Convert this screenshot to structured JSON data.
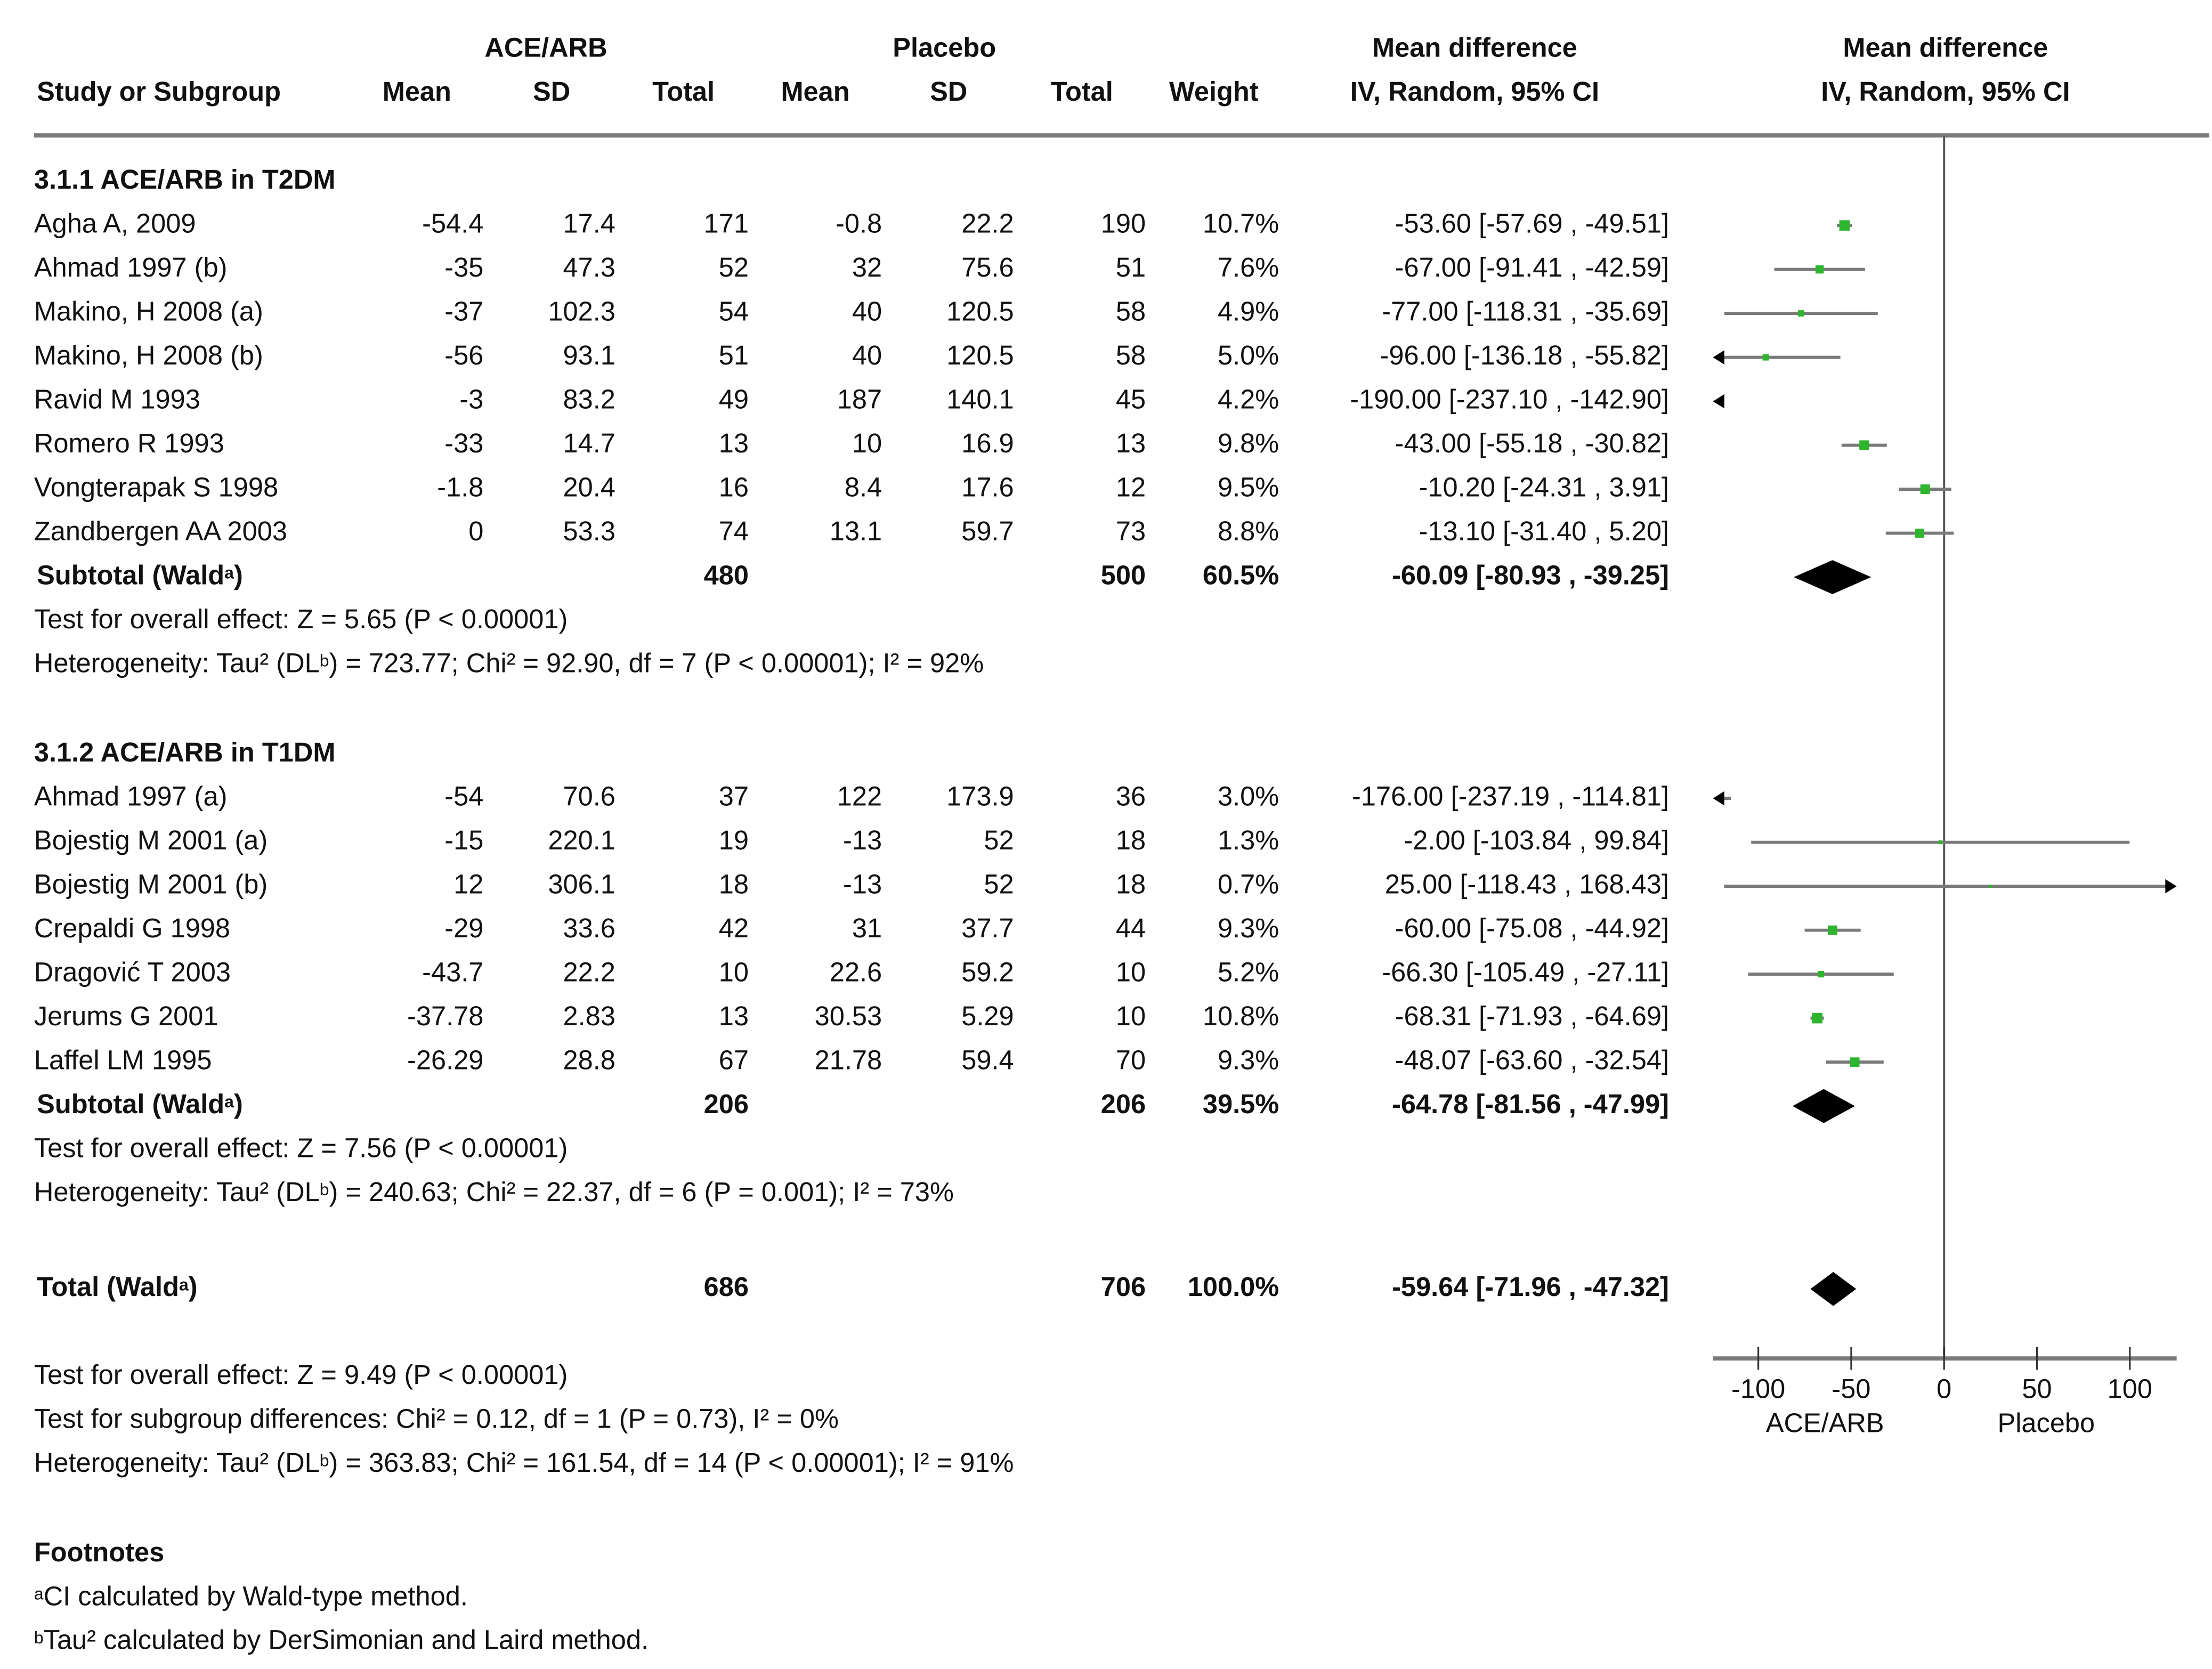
{
  "header": {
    "group1": "ACE/ARB",
    "group2": "Placebo",
    "md_title": "Mean difference",
    "md_sub": "IV, Random, 95% CI",
    "plot_title": "Mean difference",
    "plot_sub": "IV, Random, 95% CI",
    "cols": [
      "Study or Subgroup",
      "Mean",
      "SD",
      "Total",
      "Mean",
      "SD",
      "Total",
      "Weight"
    ]
  },
  "subgroups": [
    {
      "title": "3.1.1 ACE/ARB in T2DM",
      "studies": [
        {
          "name": "Agha A, 2009",
          "m1": "-54.4",
          "sd1": "17.4",
          "n1": "171",
          "m2": "-0.8",
          "sd2": "22.2",
          "n2": "190",
          "w": "10.7%",
          "ci": "-53.60 [-57.69 , -49.51]"
        },
        {
          "name": "Ahmad 1997 (b)",
          "m1": "-35",
          "sd1": "47.3",
          "n1": "52",
          "m2": "32",
          "sd2": "75.6",
          "n2": "51",
          "w": "7.6%",
          "ci": "-67.00 [-91.41 , -42.59]"
        },
        {
          "name": "Makino, H 2008 (a)",
          "m1": "-37",
          "sd1": "102.3",
          "n1": "54",
          "m2": "40",
          "sd2": "120.5",
          "n2": "58",
          "w": "4.9%",
          "ci": "-77.00 [-118.31 , -35.69]"
        },
        {
          "name": "Makino, H 2008 (b)",
          "m1": "-56",
          "sd1": "93.1",
          "n1": "51",
          "m2": "40",
          "sd2": "120.5",
          "n2": "58",
          "w": "5.0%",
          "ci": "-96.00 [-136.18 , -55.82]"
        },
        {
          "name": "Ravid M 1993",
          "m1": "-3",
          "sd1": "83.2",
          "n1": "49",
          "m2": "187",
          "sd2": "140.1",
          "n2": "45",
          "w": "4.2%",
          "ci": "-190.00 [-237.10 , -142.90]"
        },
        {
          "name": "Romero R 1993",
          "m1": "-33",
          "sd1": "14.7",
          "n1": "13",
          "m2": "10",
          "sd2": "16.9",
          "n2": "13",
          "w": "9.8%",
          "ci": "-43.00 [-55.18 , -30.82]"
        },
        {
          "name": "Vongterapak S 1998",
          "m1": "-1.8",
          "sd1": "20.4",
          "n1": "16",
          "m2": "8.4",
          "sd2": "17.6",
          "n2": "12",
          "w": "9.5%",
          "ci": "-10.20 [-24.31 , 3.91]"
        },
        {
          "name": "Zandbergen AA 2003",
          "m1": "0",
          "sd1": "53.3",
          "n1": "74",
          "m2": "13.1",
          "sd2": "59.7",
          "n2": "73",
          "w": "8.8%",
          "ci": "-13.10 [-31.40 , 5.20]"
        }
      ],
      "subtotal": {
        "label": "Subtotal (Wald",
        "sup": "a",
        "close": ")",
        "n1": "480",
        "n2": "500",
        "w": "60.5%",
        "ci": "-60.09 [-80.93 , -39.25]"
      },
      "test": "Test for overall effect: Z = 5.65 (P < 0.00001)",
      "het": {
        "pre": "Heterogeneity: Tau² (DL",
        "sup": "b",
        "post": ") = 723.77; Chi² = 92.90, df = 7 (P < 0.00001); I² = 92%"
      }
    },
    {
      "title": "3.1.2 ACE/ARB in T1DM",
      "studies": [
        {
          "name": "Ahmad 1997 (a)",
          "m1": "-54",
          "sd1": "70.6",
          "n1": "37",
          "m2": "122",
          "sd2": "173.9",
          "n2": "36",
          "w": "3.0%",
          "ci": "-176.00 [-237.19 , -114.81]"
        },
        {
          "name": "Bojestig M 2001 (a)",
          "m1": "-15",
          "sd1": "220.1",
          "n1": "19",
          "m2": "-13",
          "sd2": "52",
          "n2": "18",
          "w": "1.3%",
          "ci": "-2.00 [-103.84 , 99.84]"
        },
        {
          "name": "Bojestig M 2001 (b)",
          "m1": "12",
          "sd1": "306.1",
          "n1": "18",
          "m2": "-13",
          "sd2": "52",
          "n2": "18",
          "w": "0.7%",
          "ci": "25.00 [-118.43 , 168.43]"
        },
        {
          "name": "Crepaldi G 1998",
          "m1": "-29",
          "sd1": "33.6",
          "n1": "42",
          "m2": "31",
          "sd2": "37.7",
          "n2": "44",
          "w": "9.3%",
          "ci": "-60.00 [-75.08 , -44.92]"
        },
        {
          "name": "Dragović T 2003",
          "m1": "-43.7",
          "sd1": "22.2",
          "n1": "10",
          "m2": "22.6",
          "sd2": "59.2",
          "n2": "10",
          "w": "5.2%",
          "ci": "-66.30 [-105.49 , -27.11]"
        },
        {
          "name": "Jerums G 2001",
          "m1": "-37.78",
          "sd1": "2.83",
          "n1": "13",
          "m2": "30.53",
          "sd2": "5.29",
          "n2": "10",
          "w": "10.8%",
          "ci": "-68.31 [-71.93 , -64.69]"
        },
        {
          "name": "Laffel LM 1995",
          "m1": "-26.29",
          "sd1": "28.8",
          "n1": "67",
          "m2": "21.78",
          "sd2": "59.4",
          "n2": "70",
          "w": "9.3%",
          "ci": "-48.07 [-63.60 , -32.54]"
        }
      ],
      "subtotal": {
        "label": "Subtotal (Wald",
        "sup": "a",
        "close": ")",
        "n1": "206",
        "n2": "206",
        "w": "39.5%",
        "ci": "-64.78 [-81.56 , -47.99]"
      },
      "test": "Test for overall effect: Z = 7.56 (P < 0.00001)",
      "het": {
        "pre": "Heterogeneity: Tau² (DL",
        "sup": "b",
        "post": ") = 240.63; Chi² = 22.37, df = 6 (P = 0.001); I² = 73%"
      }
    }
  ],
  "total": {
    "label": "Total (Wald",
    "sup": "a",
    "close": ")",
    "n1": "686",
    "n2": "706",
    "w": "100.0%",
    "ci": "-59.64 [-71.96 , -47.32]"
  },
  "overall": {
    "test": "Test for overall effect: Z = 9.49 (P < 0.00001)",
    "subgroup": "Test for subgroup differences: Chi² = 0.12, df = 1 (P = 0.73), I² = 0%",
    "het": {
      "pre": "Heterogeneity: Tau² (DL",
      "sup": "b",
      "post": ") = 363.83; Chi² = 161.54, df = 14 (P < 0.00001); I² = 91%"
    }
  },
  "footnotes": {
    "title": "Footnotes",
    "a": {
      "sup": "a",
      "text": "CI calculated by Wald-type method."
    },
    "b": {
      "sup": "b",
      "text": "Tau² calculated by DerSimonian and Laird method."
    }
  },
  "chart_data": {
    "type": "forest",
    "xlim": [
      -125,
      125
    ],
    "xticks": [
      "-100",
      "-50",
      "0",
      "50",
      "100"
    ],
    "xlabel_left": "ACE/ARB",
    "xlabel_right": "Placebo",
    "colors": {
      "point": "#2db52d",
      "ci": "#7a7a7a",
      "diamond": "#000000"
    },
    "points": [
      {
        "est": -53.6,
        "lo": -57.69,
        "hi": -49.51,
        "weight": 10.7
      },
      {
        "est": -67.0,
        "lo": -91.41,
        "hi": -42.59,
        "weight": 7.6
      },
      {
        "est": -77.0,
        "lo": -118.31,
        "hi": -35.69,
        "weight": 4.9
      },
      {
        "est": -96.0,
        "lo": -136.18,
        "hi": -55.82,
        "weight": 5.0
      },
      {
        "est": -190.0,
        "lo": -237.1,
        "hi": -142.9,
        "weight": 4.2
      },
      {
        "est": -43.0,
        "lo": -55.18,
        "hi": -30.82,
        "weight": 9.8
      },
      {
        "est": -10.2,
        "lo": -24.31,
        "hi": 3.91,
        "weight": 9.5
      },
      {
        "est": -13.1,
        "lo": -31.4,
        "hi": 5.2,
        "weight": 8.8
      },
      {
        "est": -60.09,
        "lo": -80.93,
        "hi": -39.25,
        "diamond": true
      },
      {
        "est": -176.0,
        "lo": -237.19,
        "hi": -114.81,
        "weight": 3.0
      },
      {
        "est": -2.0,
        "lo": -103.84,
        "hi": 99.84,
        "weight": 1.3
      },
      {
        "est": 25.0,
        "lo": -118.43,
        "hi": 168.43,
        "weight": 0.7
      },
      {
        "est": -60.0,
        "lo": -75.08,
        "hi": -44.92,
        "weight": 9.3
      },
      {
        "est": -66.3,
        "lo": -105.49,
        "hi": -27.11,
        "weight": 5.2
      },
      {
        "est": -68.31,
        "lo": -71.93,
        "hi": -64.69,
        "weight": 10.8
      },
      {
        "est": -48.07,
        "lo": -63.6,
        "hi": -32.54,
        "weight": 9.3
      },
      {
        "est": -64.78,
        "lo": -81.56,
        "hi": -47.99,
        "diamond": true
      },
      {
        "est": -59.64,
        "lo": -71.96,
        "hi": -47.32,
        "diamond": true
      }
    ]
  }
}
